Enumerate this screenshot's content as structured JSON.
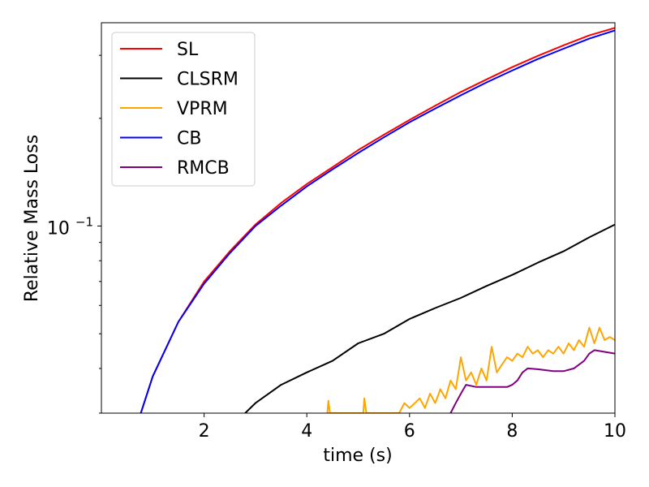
{
  "chart_data": {
    "type": "line",
    "xlabel": "time (s)",
    "ylabel": "Relative Mass Loss",
    "xlim": [
      0.0,
      10.0
    ],
    "ylim": [
      0.03,
      0.37
    ],
    "yscale": "log",
    "legend_position": "top-left",
    "x_ticks": [
      {
        "value": 2,
        "label": "2"
      },
      {
        "value": 4,
        "label": "4"
      },
      {
        "value": 6,
        "label": "6"
      },
      {
        "value": 8,
        "label": "8"
      },
      {
        "value": 10,
        "label": "10"
      }
    ],
    "y_major_tick": {
      "value": 0.1,
      "label_base": "10",
      "label_exp": "−1"
    },
    "y_minor_ticks": [
      0.03,
      0.04,
      0.05,
      0.06,
      0.07,
      0.08,
      0.09,
      0.2,
      0.3
    ],
    "series": [
      {
        "name": "SL",
        "color": "#ff0000",
        "points": [
          [
            0.7,
            0.028
          ],
          [
            1.0,
            0.038
          ],
          [
            1.5,
            0.054
          ],
          [
            2.0,
            0.07
          ],
          [
            2.5,
            0.085
          ],
          [
            3.0,
            0.101
          ],
          [
            3.5,
            0.116
          ],
          [
            4.0,
            0.131
          ],
          [
            4.5,
            0.146
          ],
          [
            5.0,
            0.163
          ],
          [
            5.5,
            0.18
          ],
          [
            6.0,
            0.198
          ],
          [
            6.5,
            0.217
          ],
          [
            7.0,
            0.237
          ],
          [
            7.5,
            0.257
          ],
          [
            8.0,
            0.278
          ],
          [
            8.5,
            0.299
          ],
          [
            9.0,
            0.32
          ],
          [
            9.5,
            0.341
          ],
          [
            10.0,
            0.358
          ]
        ]
      },
      {
        "name": "CLSRM",
        "color": "#000000",
        "points": [
          [
            2.8,
            0.03
          ],
          [
            3.0,
            0.032
          ],
          [
            3.5,
            0.036
          ],
          [
            4.0,
            0.039
          ],
          [
            4.5,
            0.042
          ],
          [
            5.0,
            0.047
          ],
          [
            5.5,
            0.05
          ],
          [
            6.0,
            0.055
          ],
          [
            6.5,
            0.059
          ],
          [
            7.0,
            0.063
          ],
          [
            7.5,
            0.068
          ],
          [
            8.0,
            0.073
          ],
          [
            8.5,
            0.079
          ],
          [
            9.0,
            0.085
          ],
          [
            9.5,
            0.093
          ],
          [
            10.0,
            0.101
          ]
        ]
      },
      {
        "name": "VPRM",
        "color": "#ffa500",
        "points": [
          [
            4.4,
            0.03
          ],
          [
            4.42,
            0.0325
          ],
          [
            4.45,
            0.03
          ],
          [
            5.1,
            0.03
          ],
          [
            5.12,
            0.033
          ],
          [
            5.16,
            0.03
          ],
          [
            5.8,
            0.03
          ],
          [
            5.9,
            0.032
          ],
          [
            6.0,
            0.031
          ],
          [
            6.2,
            0.033
          ],
          [
            6.3,
            0.031
          ],
          [
            6.4,
            0.034
          ],
          [
            6.5,
            0.032
          ],
          [
            6.6,
            0.035
          ],
          [
            6.7,
            0.033
          ],
          [
            6.8,
            0.037
          ],
          [
            6.9,
            0.035
          ],
          [
            7.0,
            0.043
          ],
          [
            7.1,
            0.037
          ],
          [
            7.2,
            0.039
          ],
          [
            7.3,
            0.036
          ],
          [
            7.4,
            0.04
          ],
          [
            7.5,
            0.037
          ],
          [
            7.6,
            0.046
          ],
          [
            7.7,
            0.039
          ],
          [
            7.8,
            0.041
          ],
          [
            7.9,
            0.043
          ],
          [
            8.0,
            0.042
          ],
          [
            8.1,
            0.044
          ],
          [
            8.2,
            0.043
          ],
          [
            8.3,
            0.046
          ],
          [
            8.4,
            0.044
          ],
          [
            8.5,
            0.045
          ],
          [
            8.6,
            0.043
          ],
          [
            8.7,
            0.045
          ],
          [
            8.8,
            0.044
          ],
          [
            8.9,
            0.046
          ],
          [
            9.0,
            0.044
          ],
          [
            9.1,
            0.047
          ],
          [
            9.2,
            0.045
          ],
          [
            9.3,
            0.048
          ],
          [
            9.4,
            0.046
          ],
          [
            9.5,
            0.052
          ],
          [
            9.6,
            0.047
          ],
          [
            9.7,
            0.052
          ],
          [
            9.8,
            0.048
          ],
          [
            9.9,
            0.049
          ],
          [
            10.0,
            0.048
          ]
        ]
      },
      {
        "name": "CB",
        "color": "#0000ff",
        "points": [
          [
            0.7,
            0.028
          ],
          [
            1.0,
            0.038
          ],
          [
            1.5,
            0.054
          ],
          [
            2.0,
            0.069
          ],
          [
            2.5,
            0.084
          ],
          [
            3.0,
            0.1
          ],
          [
            3.5,
            0.114
          ],
          [
            4.0,
            0.129
          ],
          [
            4.5,
            0.144
          ],
          [
            5.0,
            0.16
          ],
          [
            5.5,
            0.177
          ],
          [
            6.0,
            0.195
          ],
          [
            6.5,
            0.213
          ],
          [
            7.0,
            0.232
          ],
          [
            7.5,
            0.252
          ],
          [
            8.0,
            0.272
          ],
          [
            8.5,
            0.293
          ],
          [
            9.0,
            0.313
          ],
          [
            9.5,
            0.334
          ],
          [
            10.0,
            0.352
          ]
        ]
      },
      {
        "name": "RMCB",
        "color": "#800080",
        "points": [
          [
            6.8,
            0.03
          ],
          [
            6.9,
            0.032
          ],
          [
            7.0,
            0.034
          ],
          [
            7.1,
            0.036
          ],
          [
            7.3,
            0.0355
          ],
          [
            7.6,
            0.0355
          ],
          [
            7.9,
            0.0355
          ],
          [
            8.0,
            0.036
          ],
          [
            8.1,
            0.037
          ],
          [
            8.2,
            0.039
          ],
          [
            8.3,
            0.04
          ],
          [
            8.5,
            0.0398
          ],
          [
            8.8,
            0.0393
          ],
          [
            9.0,
            0.0393
          ],
          [
            9.2,
            0.04
          ],
          [
            9.4,
            0.042
          ],
          [
            9.5,
            0.044
          ],
          [
            9.6,
            0.045
          ],
          [
            9.8,
            0.0445
          ],
          [
            10.0,
            0.044
          ]
        ]
      }
    ]
  }
}
